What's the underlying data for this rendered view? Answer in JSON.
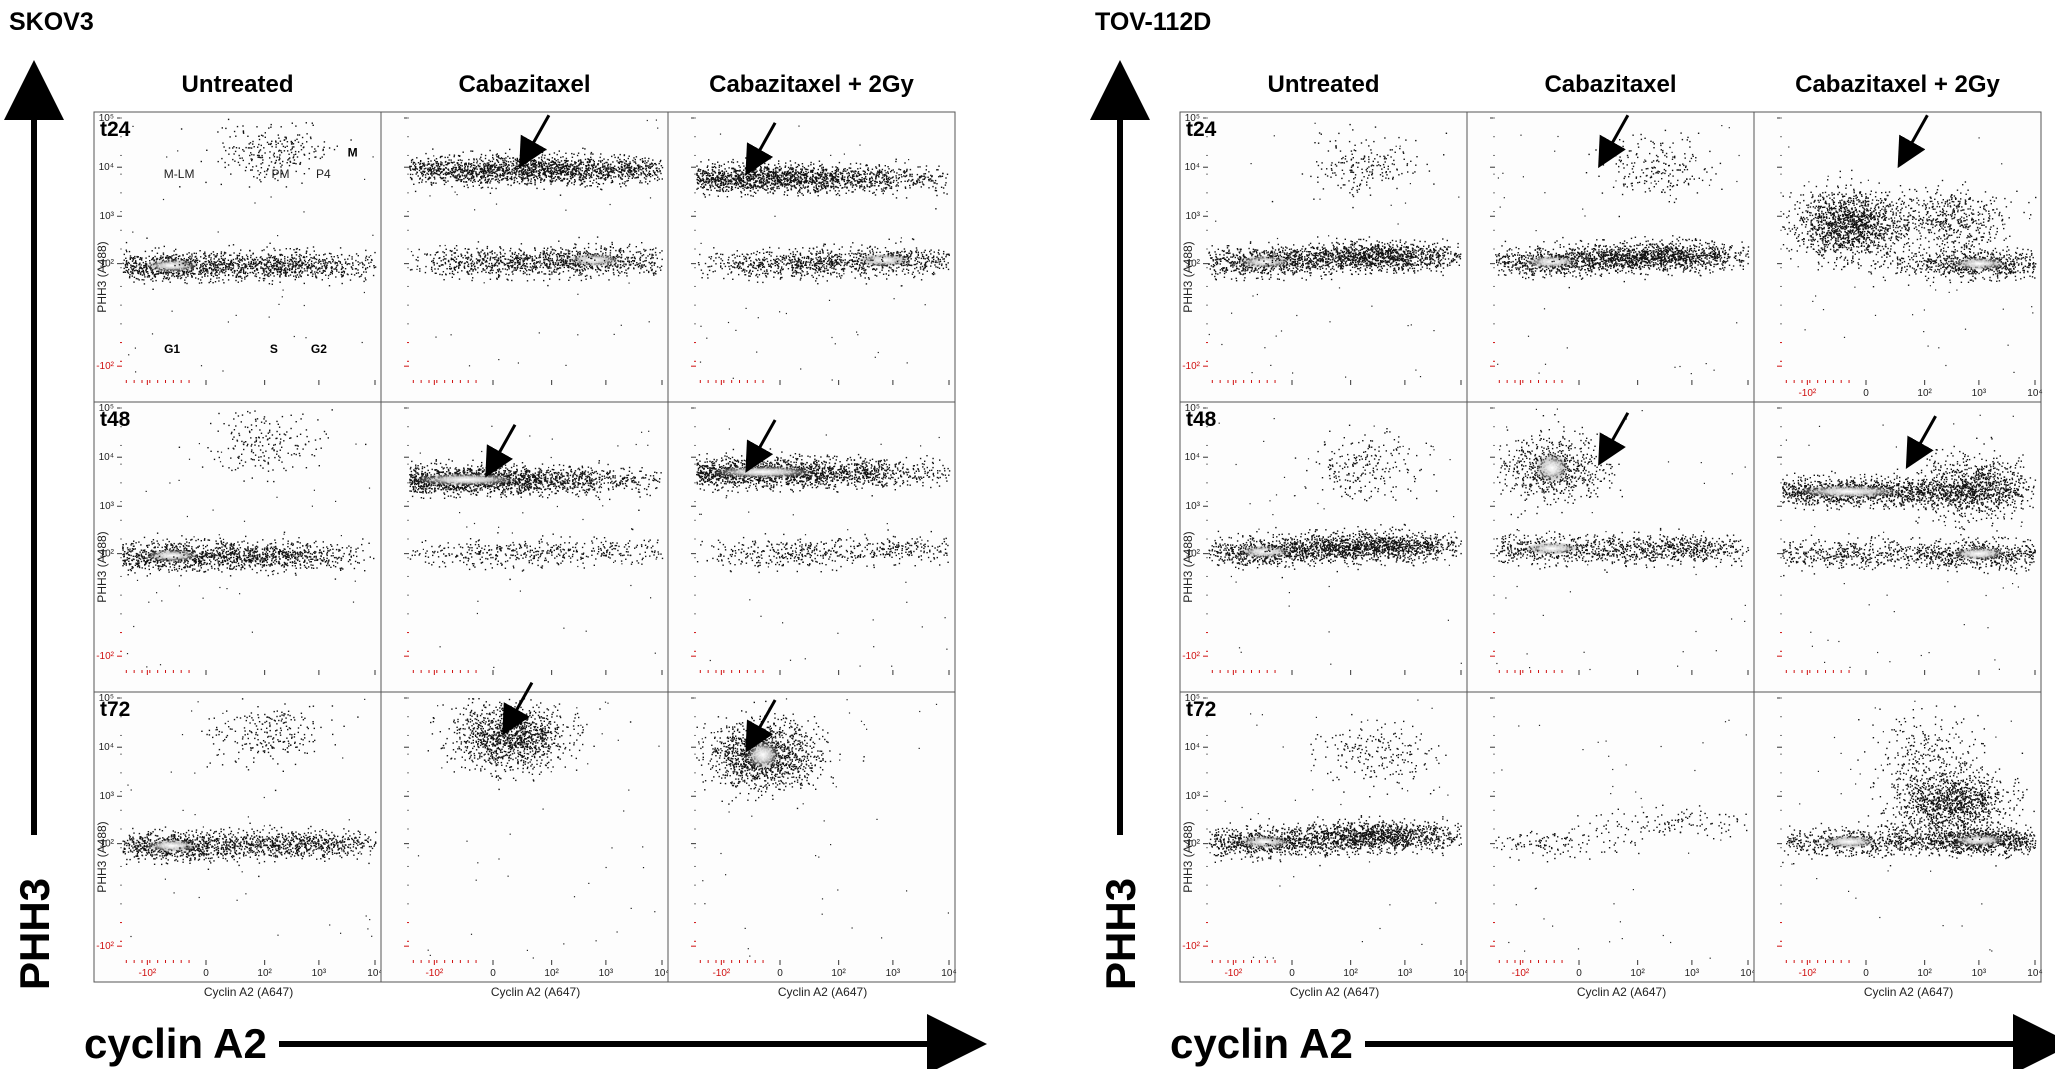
{
  "chart_data": {
    "type": "scatter",
    "description_free": true,
    "x_axis_label": "Cyclin A2 (A647)",
    "y_axis_label": "PHH3 (A488)",
    "x_tick_labels": [
      "-10²",
      "0",
      "10²",
      "10³",
      "10⁴"
    ],
    "y_tick_labels": [
      "10⁵",
      "10⁴",
      "10³",
      "10²",
      "-10²"
    ],
    "big_y_label": "PHH3",
    "big_x_label": "cyclin A2",
    "timepoints": [
      "t24",
      "t48",
      "t72"
    ],
    "conditions": [
      "Untreated",
      "Cabazitaxel",
      "Cabazitaxel + 2Gy"
    ],
    "region_labels": {
      "mitotic": [
        "M-LM",
        "PM",
        "P4",
        "M"
      ],
      "interphase": [
        "G1",
        "S",
        "G2"
      ]
    },
    "panels": [
      {
        "cell_line": "SKOV3",
        "plots": [
          [
            {
              "condition": "Untreated",
              "timepoint": "t24",
              "arrow": false,
              "clusters": [
                {
                  "x": -30,
                  "y": 90,
                  "n": 900,
                  "bright": true
                },
                {
                  "x": 300,
                  "y": 95,
                  "n": 700,
                  "bright": false
                },
                {
                  "x": 150,
                  "y": 20000,
                  "n": 260,
                  "bright": false
                }
              ]
            },
            {
              "condition": "Cabazitaxel",
              "timepoint": "t24",
              "arrow": true,
              "arrow_x": 30,
              "arrow_y": 10000,
              "clusters": [
                {
                  "x": 30,
                  "y": 9000,
                  "n": 2200,
                  "bright": false
                },
                {
                  "x": 600,
                  "y": 120,
                  "n": 700,
                  "bright": true
                },
                {
                  "x": 0,
                  "y": 110,
                  "n": 500,
                  "bright": false
                }
              ]
            },
            {
              "condition": "Cabazitaxel + 2Gy",
              "timepoint": "t24",
              "arrow": true,
              "arrow_x": -20,
              "arrow_y": 7000,
              "clusters": [
                {
                  "x": -10,
                  "y": 6000,
                  "n": 2200,
                  "bright": false
                },
                {
                  "x": 700,
                  "y": 120,
                  "n": 600,
                  "bright": true
                },
                {
                  "x": 0,
                  "y": 100,
                  "n": 500,
                  "bright": false
                }
              ]
            }
          ],
          [
            {
              "condition": "Untreated",
              "timepoint": "t48",
              "arrow": false,
              "clusters": [
                {
                  "x": -30,
                  "y": 90,
                  "n": 900,
                  "bright": true
                },
                {
                  "x": 200,
                  "y": 92,
                  "n": 600,
                  "bright": false
                },
                {
                  "x": 100,
                  "y": 20000,
                  "n": 200,
                  "bright": false
                }
              ]
            },
            {
              "condition": "Cabazitaxel",
              "timepoint": "t48",
              "arrow": true,
              "arrow_x": 0,
              "arrow_y": 4000,
              "clusters": [
                {
                  "x": -20,
                  "y": 3500,
                  "n": 2400,
                  "bright": true
                },
                {
                  "x": 0,
                  "y": 100,
                  "n": 260,
                  "bright": false
                },
                {
                  "x": 900,
                  "y": 120,
                  "n": 220,
                  "bright": false
                }
              ]
            },
            {
              "condition": "Cabazitaxel + 2Gy",
              "timepoint": "t48",
              "arrow": true,
              "arrow_x": -20,
              "arrow_y": 5000,
              "clusters": [
                {
                  "x": -10,
                  "y": 5000,
                  "n": 2400,
                  "bright": true
                },
                {
                  "x": 0,
                  "y": 100,
                  "n": 300,
                  "bright": false
                },
                {
                  "x": 1500,
                  "y": 130,
                  "n": 260,
                  "bright": false
                }
              ]
            }
          ],
          [
            {
              "condition": "Untreated",
              "timepoint": "t72",
              "arrow": false,
              "clusters": [
                {
                  "x": -30,
                  "y": 90,
                  "n": 900,
                  "bright": true
                },
                {
                  "x": 400,
                  "y": 100,
                  "n": 700,
                  "bright": false
                },
                {
                  "x": 100,
                  "y": 20000,
                  "n": 240,
                  "bright": false
                }
              ]
            },
            {
              "condition": "Cabazitaxel",
              "timepoint": "t72",
              "arrow": true,
              "arrow_x": 10,
              "arrow_y": 18000,
              "clusters": [
                {
                  "x": 10,
                  "y": 17000,
                  "n": 1200,
                  "bright": false
                }
              ]
            },
            {
              "condition": "Cabazitaxel + 2Gy",
              "timepoint": "t72",
              "arrow": true,
              "arrow_x": -20,
              "arrow_y": 8000,
              "clusters": [
                {
                  "x": -10,
                  "y": 7000,
                  "n": 1300,
                  "bright": true
                }
              ]
            }
          ]
        ]
      },
      {
        "cell_line": "TOV-112D",
        "plots": [
          [
            {
              "condition": "Untreated",
              "timepoint": "t24",
              "arrow": false,
              "clusters": [
                {
                  "x": -20,
                  "y": 110,
                  "n": 800,
                  "bright": true
                },
                {
                  "x": 300,
                  "y": 150,
                  "n": 1200,
                  "bright": false
                },
                {
                  "x": 200,
                  "y": 10000,
                  "n": 200,
                  "bright": false
                }
              ]
            },
            {
              "condition": "Cabazitaxel",
              "timepoint": "t24",
              "arrow": true,
              "arrow_x": 20,
              "arrow_y": 10000,
              "clusters": [
                {
                  "x": -20,
                  "y": 110,
                  "n": 800,
                  "bright": true
                },
                {
                  "x": 300,
                  "y": 150,
                  "n": 1200,
                  "bright": false
                },
                {
                  "x": 200,
                  "y": 10000,
                  "n": 200,
                  "bright": false
                }
              ]
            },
            {
              "condition": "Cabazitaxel + 2Gy",
              "timepoint": "t24",
              "arrow": true,
              "arrow_x": 40,
              "arrow_y": 10000,
              "clusters": [
                {
                  "x": -10,
                  "y": 700,
                  "n": 1400,
                  "bright": false
                },
                {
                  "x": 1000,
                  "y": 100,
                  "n": 800,
                  "bright": true
                },
                {
                  "x": 300,
                  "y": 900,
                  "n": 500,
                  "bright": false
                }
              ]
            }
          ],
          [
            {
              "condition": "Untreated",
              "timepoint": "t48",
              "arrow": false,
              "clusters": [
                {
                  "x": -20,
                  "y": 110,
                  "n": 800,
                  "bright": true
                },
                {
                  "x": 300,
                  "y": 150,
                  "n": 1200,
                  "bright": false
                },
                {
                  "x": 200,
                  "y": 6000,
                  "n": 220,
                  "bright": false
                }
              ]
            },
            {
              "condition": "Cabazitaxel",
              "timepoint": "t48",
              "arrow": true,
              "arrow_x": 20,
              "arrow_y": 7000,
              "clusters": [
                {
                  "x": -20,
                  "y": 6000,
                  "n": 700,
                  "bright": true
                },
                {
                  "x": -20,
                  "y": 130,
                  "n": 500,
                  "bright": true
                },
                {
                  "x": 500,
                  "y": 130,
                  "n": 600,
                  "bright": false
                }
              ]
            },
            {
              "condition": "Cabazitaxel + 2Gy",
              "timepoint": "t48",
              "arrow": true,
              "arrow_x": 60,
              "arrow_y": 6000,
              "clusters": [
                {
                  "x": -10,
                  "y": 2000,
                  "n": 1800,
                  "bright": true
                },
                {
                  "x": 800,
                  "y": 2500,
                  "n": 800,
                  "bright": false
                },
                {
                  "x": 1000,
                  "y": 100,
                  "n": 700,
                  "bright": true
                },
                {
                  "x": -20,
                  "y": 100,
                  "n": 400,
                  "bright": false
                }
              ]
            }
          ],
          [
            {
              "condition": "Untreated",
              "timepoint": "t72",
              "arrow": false,
              "clusters": [
                {
                  "x": -20,
                  "y": 110,
                  "n": 800,
                  "bright": true
                },
                {
                  "x": 300,
                  "y": 150,
                  "n": 1200,
                  "bright": false
                },
                {
                  "x": 300,
                  "y": 7000,
                  "n": 200,
                  "bright": false
                }
              ]
            },
            {
              "condition": "Cabazitaxel",
              "timepoint": "t72",
              "arrow": false,
              "clusters": [
                {
                  "x": -20,
                  "y": 100,
                  "n": 140,
                  "bright": false
                },
                {
                  "x": 500,
                  "y": 300,
                  "n": 120,
                  "bright": false
                }
              ]
            },
            {
              "condition": "Cabazitaxel + 2Gy",
              "timepoint": "t72",
              "arrow": false,
              "clusters": [
                {
                  "x": 1000,
                  "y": 120,
                  "n": 1000,
                  "bright": true
                },
                {
                  "x": 300,
                  "y": 800,
                  "n": 1200,
                  "bright": false
                },
                {
                  "x": -10,
                  "y": 110,
                  "n": 500,
                  "bright": true
                },
                {
                  "x": 100,
                  "y": 10000,
                  "n": 200,
                  "bright": false
                }
              ]
            }
          ]
        ]
      }
    ]
  }
}
